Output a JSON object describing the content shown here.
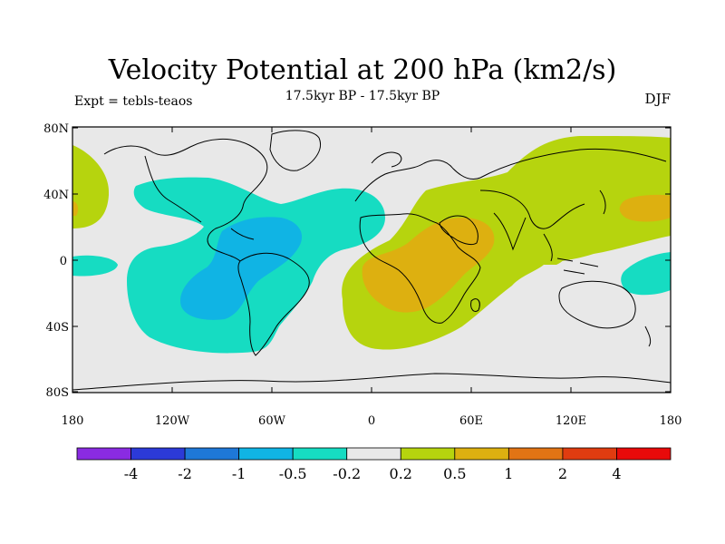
{
  "title": "Velocity Potential at 200 hPa (km2/s)",
  "subtitle": "17.5kyr BP - 17.5kyr BP",
  "expt_label": "Expt = tebls-teaos",
  "season": "DJF",
  "lat_ticks": [
    "80N",
    "40N",
    "0",
    "40S",
    "80S"
  ],
  "lon_ticks": [
    "180",
    "120W",
    "60W",
    "0",
    "60E",
    "120E",
    "180"
  ],
  "colorbar": {
    "labels": [
      "-4",
      "-2",
      "-1",
      "-0.5",
      "-0.2",
      "0.2",
      "0.5",
      "1",
      "2",
      "4"
    ],
    "colors": [
      "#8a2be2",
      "#2c3ad8",
      "#1e78d8",
      "#10b4e4",
      "#16dcc2",
      "#e8e8e8",
      "#b6d40e",
      "#ddb010",
      "#e27414",
      "#e03c10",
      "#e80a0a"
    ]
  },
  "fill_colors": {
    "neutral": "#e8e8e8",
    "pos05": "#b6d40e",
    "pos1": "#ddb010",
    "neg02": "#16dcc2",
    "neg05": "#10b4e4"
  }
}
